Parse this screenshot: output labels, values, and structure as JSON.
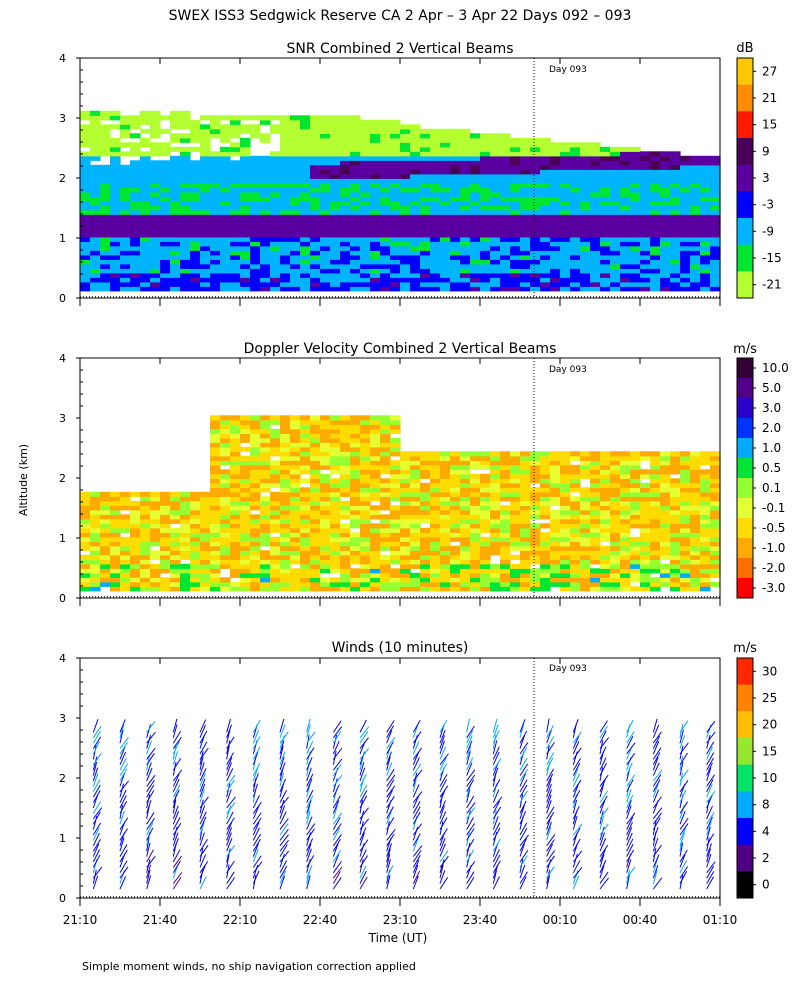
{
  "figure": {
    "title": "SWEX ISS3 Sedgwick Reserve CA    2 Apr –  3 Apr 22 Days 092 – 093",
    "ylabel": "Altitude (km)",
    "xlabel": "Time (UT)",
    "footnote": "Simple moment winds, no ship navigation correction applied",
    "day_marker": "Day 093"
  },
  "chart_data": [
    {
      "type": "heatmap",
      "title": "SNR Combined 2 Vertical Beams",
      "colorbar_unit": "dB",
      "colorbar_labels": [
        "27",
        "21",
        "15",
        "9",
        "3",
        "-3",
        "-9",
        "-15",
        "-21"
      ],
      "colorbar_colors": [
        "#ffc800",
        "#ff8c00",
        "#ff1a00",
        "#4b0058",
        "#5a00a0",
        "#0000ff",
        "#00b4ff",
        "#00e632",
        "#b4ff32"
      ],
      "ylim": [
        0,
        4
      ],
      "yticks": [
        "0",
        "1",
        "2",
        "3",
        "4"
      ],
      "xlim_hours": [
        21.1667,
        25.1667
      ],
      "layers": [
        {
          "name": "low-snr-top",
          "bottom_km": 2.3,
          "top_km": 3.2,
          "value_db": -18
        },
        {
          "name": "mid-layer",
          "bottom_km": 1.8,
          "top_km": 2.3,
          "value_db": -6
        },
        {
          "name": "elevated-layer",
          "bottom_km": 1.85,
          "top_km": 2.2,
          "value_db": 6
        },
        {
          "name": "inversion-layer",
          "bottom_km": 0.95,
          "top_km": 1.4,
          "value_db": 5
        },
        {
          "name": "boundary-layer",
          "bottom_km": 0.1,
          "top_km": 0.95,
          "value_db": -8
        }
      ]
    },
    {
      "type": "heatmap",
      "title": "Doppler Velocity Combined 2 Vertical Beams",
      "colorbar_unit": "m/s",
      "colorbar_labels": [
        "10.0",
        "5.0",
        "3.0",
        "2.0",
        "1.0",
        "0.5",
        "0.1",
        "-0.1",
        "-0.5",
        "-1.0",
        "-2.0",
        "-3.0"
      ],
      "colorbar_colors": [
        "#320032",
        "#50008c",
        "#2800c8",
        "#0032ff",
        "#00aaff",
        "#00e632",
        "#96ff32",
        "#e6ff32",
        "#ffdc00",
        "#ffaa00",
        "#ff6e00",
        "#ff0000"
      ],
      "ylim": [
        0,
        4
      ],
      "yticks": [
        "0",
        "1",
        "2",
        "3",
        "4"
      ],
      "xlim_hours": [
        21.1667,
        25.1667
      ],
      "typical_value_ms": -0.3
    },
    {
      "type": "scatter",
      "title": "Winds (10 minutes)",
      "colorbar_unit": "m/s",
      "colorbar_labels": [
        "30",
        "25",
        "20",
        "15",
        "10",
        "8",
        "4",
        "2",
        "0"
      ],
      "colorbar_colors": [
        "#ff2800",
        "#ff8200",
        "#ffbe00",
        "#96e632",
        "#00e664",
        "#00aaff",
        "#0000ff",
        "#500082",
        "#000000"
      ],
      "ylim": [
        0,
        4
      ],
      "yticks": [
        "0",
        "1",
        "2",
        "3",
        "4"
      ],
      "xticks": [
        "21:10",
        "21:40",
        "22:10",
        "22:40",
        "23:10",
        "23:40",
        "00:10",
        "00:40",
        "01:10"
      ],
      "xlim_hours": [
        21.1667,
        25.1667
      ],
      "interval_min": 10,
      "profile_top_km": 2.8,
      "typical_speed_ms": 6
    }
  ]
}
